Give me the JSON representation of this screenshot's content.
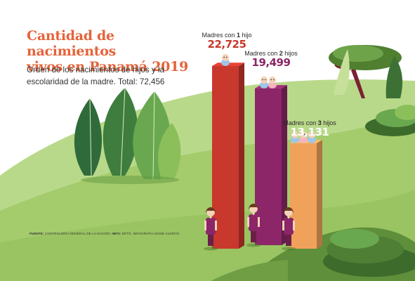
{
  "header": {
    "title_line1": "Cantidad de nacimientos",
    "title_line2": "vivos en Panamá 2019",
    "subtitle": "Orden de los nacimientos de hijos y la escolaridad de la madre. Total: 72,456"
  },
  "colors": {
    "title": "#e4633a",
    "bar_1": "#c8382c",
    "bar_2": "#8c2668",
    "bar_3": "#f0a25a",
    "hill_light": "#a6cc6c",
    "hill_dark": "#5f8f3a",
    "sky": "#ffffff"
  },
  "chart_data": {
    "type": "bar",
    "title": "Cantidad de nacimientos vivos en Panamá 2019",
    "subtitle": "Orden de los nacimientos de hijos y la escolaridad de la madre. Total: 72,456",
    "categories": [
      "Madres con 1 hijo",
      "Madres con 2 hijos",
      "Madres con 3 hijos"
    ],
    "values": [
      22725,
      19499,
      13131
    ],
    "value_labels": [
      "22,725",
      "19,499",
      "13,131"
    ],
    "total": "72,456",
    "ylim": [
      0,
      22725
    ]
  },
  "labels": [
    {
      "prefix": "Madres con ",
      "num": "1",
      "suffix": " hijo"
    },
    {
      "prefix": "Madres con ",
      "num": "2",
      "suffix": " hijos"
    },
    {
      "prefix": "Madres con ",
      "num": "3",
      "suffix": " hijos"
    }
  ],
  "source": {
    "label1": "FUENTE:",
    "text1": " CONTRALORÍA GENERAL DE LA NACIÓN. ",
    "label2": "INFO:",
    "text2": " DPTO. INFOGRAFÍA ISOSE ALDRITZ"
  },
  "icons": [
    "baby-icon",
    "mother-icon",
    "tree-icon",
    "bush-icon",
    "leaf-icon"
  ]
}
